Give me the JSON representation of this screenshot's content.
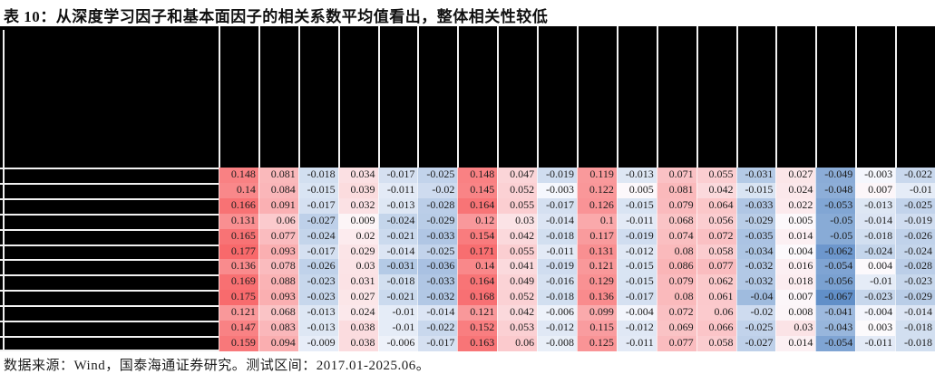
{
  "figure": {
    "title": "表 10：从深度学习因子和基本面因子的相关系数平均值看出，整体相关性较低",
    "source_note": "数据来源：Wind，国泰海通证券研究。测试区间：2017.01-2025.06。"
  },
  "chart_data": {
    "type": "heatmap",
    "title": "深度学习因子和基本面因子的相关系数平均值",
    "rows": 12,
    "cols": 18,
    "row_labels_visible": false,
    "col_labels_visible": false,
    "legend": "none",
    "grid": "off",
    "value_range": [
      -0.067,
      0.177
    ],
    "color_scale": {
      "positive": "#F8696B",
      "mid": "#FCFCFF",
      "negative": "#5A8AC6",
      "pos_anchor": 0.177,
      "neg_anchor": -0.07
    },
    "values": [
      [
        0.148,
        0.081,
        -0.018,
        0.034,
        -0.017,
        -0.025,
        0.148,
        0.047,
        -0.019,
        0.119,
        -0.013,
        0.071,
        0.055,
        -0.031,
        0.027,
        -0.049,
        -0.003,
        -0.022
      ],
      [
        0.14,
        0.084,
        -0.015,
        0.039,
        -0.011,
        -0.02,
        0.145,
        0.052,
        -0.003,
        0.122,
        0.005,
        0.081,
        0.042,
        -0.015,
        0.024,
        -0.048,
        0.007,
        -0.01
      ],
      [
        0.166,
        0.091,
        -0.017,
        0.032,
        -0.013,
        -0.028,
        0.164,
        0.055,
        -0.017,
        0.126,
        -0.015,
        0.079,
        0.064,
        -0.033,
        0.022,
        -0.053,
        -0.013,
        -0.025
      ],
      [
        0.131,
        0.06,
        -0.027,
        0.009,
        -0.024,
        -0.029,
        0.12,
        0.03,
        -0.014,
        0.1,
        -0.011,
        0.068,
        0.056,
        -0.029,
        0.005,
        -0.05,
        -0.014,
        -0.019
      ],
      [
        0.165,
        0.077,
        -0.024,
        0.02,
        -0.021,
        -0.033,
        0.154,
        0.042,
        -0.018,
        0.117,
        -0.019,
        0.074,
        0.072,
        -0.035,
        0.014,
        -0.05,
        -0.018,
        -0.026
      ],
      [
        0.177,
        0.093,
        -0.017,
        0.029,
        -0.014,
        -0.025,
        0.171,
        0.055,
        -0.011,
        0.131,
        -0.012,
        0.08,
        0.058,
        -0.034,
        0.004,
        -0.062,
        -0.024,
        -0.024
      ],
      [
        0.136,
        0.078,
        -0.026,
        0.03,
        -0.031,
        -0.036,
        0.14,
        0.041,
        -0.019,
        0.121,
        -0.015,
        0.086,
        0.077,
        -0.032,
        0.016,
        -0.054,
        0.004,
        -0.028
      ],
      [
        0.169,
        0.088,
        -0.023,
        0.031,
        -0.018,
        -0.033,
        0.164,
        0.049,
        -0.016,
        0.129,
        -0.015,
        0.079,
        0.062,
        -0.032,
        0.018,
        -0.056,
        -0.01,
        -0.023
      ],
      [
        0.175,
        0.093,
        -0.023,
        0.027,
        -0.021,
        -0.032,
        0.168,
        0.052,
        -0.018,
        0.136,
        -0.017,
        0.08,
        0.061,
        -0.04,
        0.007,
        -0.067,
        -0.023,
        -0.029
      ],
      [
        0.121,
        0.068,
        -0.013,
        0.024,
        -0.01,
        -0.014,
        0.121,
        0.042,
        -0.006,
        0.099,
        -0.004,
        0.072,
        0.06,
        -0.02,
        0.008,
        -0.041,
        -0.004,
        -0.014
      ],
      [
        0.147,
        0.083,
        -0.013,
        0.038,
        -0.01,
        -0.022,
        0.152,
        0.053,
        -0.012,
        0.115,
        -0.012,
        0.069,
        0.066,
        -0.025,
        0.03,
        -0.043,
        0.003,
        -0.018
      ],
      [
        0.159,
        0.094,
        -0.009,
        0.038,
        -0.006,
        -0.017,
        0.163,
        0.06,
        -0.008,
        0.125,
        -0.011,
        0.077,
        0.058,
        -0.027,
        0.014,
        -0.054,
        -0.011,
        -0.018
      ]
    ]
  }
}
